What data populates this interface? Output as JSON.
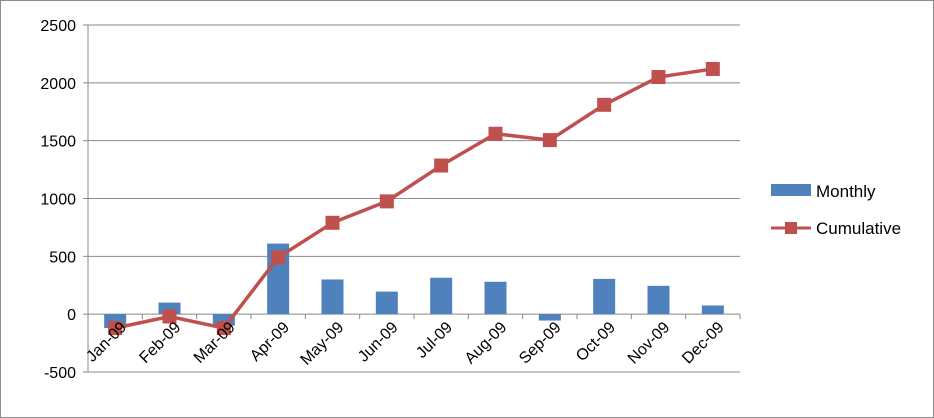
{
  "chart_data": {
    "type": "bar",
    "title": "",
    "xlabel": "",
    "ylabel": "",
    "ylim": [
      -500,
      2500
    ],
    "yticks": [
      -500,
      0,
      500,
      1000,
      1500,
      2000,
      2500
    ],
    "grid": true,
    "legend_position": "right",
    "categories": [
      "Jan-09",
      "Feb-09",
      "Mar-09",
      "Apr-09",
      "May-09",
      "Jun-09",
      "Jul-09",
      "Aug-09",
      "Sep-09",
      "Oct-09",
      "Nov-09",
      "Dec-09"
    ],
    "series": [
      {
        "name": "Monthly",
        "type": "bar",
        "color": "#4f81bd",
        "values": [
          -120,
          100,
          -100,
          610,
          300,
          195,
          315,
          280,
          -55,
          305,
          245,
          75
        ]
      },
      {
        "name": "Cumulative",
        "type": "line",
        "color": "#c0504d",
        "marker": "square",
        "values": [
          -120,
          -20,
          -120,
          490,
          790,
          975,
          1285,
          1560,
          1505,
          1810,
          2050,
          2120
        ]
      }
    ]
  }
}
